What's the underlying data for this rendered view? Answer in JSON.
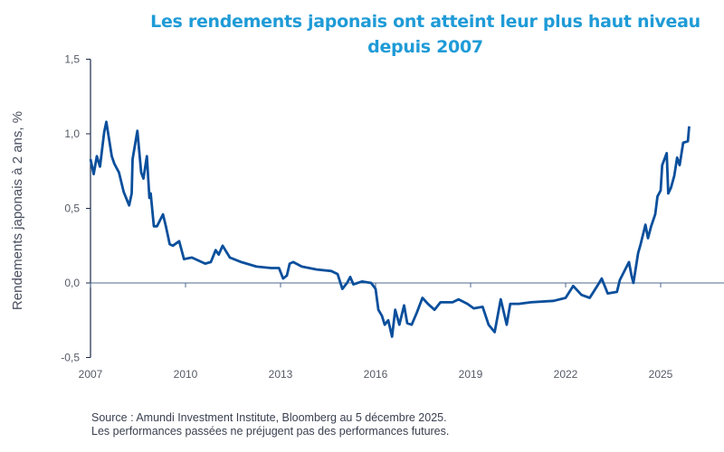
{
  "chart_data": {
    "type": "line",
    "title": "Les rendements japonais ont atteint leur plus haut niveau depuis 2007",
    "title_lines": [
      "Les rendements japonais ont atteint leur plus haut niveau",
      "depuis 2007"
    ],
    "xlabel": "",
    "ylabel": "Rendements japonais à 2 ans, %",
    "xlim": [
      2007,
      2027
    ],
    "ylim": [
      -0.5,
      1.5
    ],
    "x_ticks": [
      2007,
      2010,
      2013,
      2016,
      2019,
      2022,
      2025
    ],
    "x_tick_labels": [
      "2007",
      "2010",
      "2013",
      "2016",
      "2019",
      "2022",
      "2025"
    ],
    "y_ticks": [
      -0.5,
      0,
      0.5,
      1.0,
      1.5
    ],
    "y_tick_labels": [
      "-0,5",
      "0,0",
      "0,5",
      "1,0",
      "1,5"
    ],
    "grid": false,
    "line_color": "#0a4f9c",
    "series": [
      {
        "x": [
          2007.0,
          2007.1,
          2007.2,
          2007.3,
          2007.43,
          2007.5,
          2007.67,
          2007.75,
          2007.9,
          2008.05,
          2008.22,
          2008.3,
          2008.33,
          2008.48,
          2008.6,
          2008.67,
          2008.78,
          2008.86,
          2008.9,
          2009.0,
          2009.1,
          2009.29,
          2009.38,
          2009.5,
          2009.6,
          2009.8,
          2009.95,
          2010.2,
          2010.62,
          2010.8,
          2010.95,
          2011.05,
          2011.17,
          2011.4,
          2011.76,
          2012.24,
          2012.7,
          2012.95,
          2013.08,
          2013.2,
          2013.29,
          2013.4,
          2013.67,
          2014.14,
          2014.6,
          2014.8,
          2014.95,
          2015.1,
          2015.2,
          2015.3,
          2015.57,
          2015.86,
          2016.0,
          2016.09,
          2016.2,
          2016.29,
          2016.4,
          2016.52,
          2016.62,
          2016.75,
          2016.9,
          2017.0,
          2017.14,
          2017.3,
          2017.48,
          2017.65,
          2017.86,
          2018.05,
          2018.43,
          2018.62,
          2018.9,
          2019.1,
          2019.38,
          2019.57,
          2019.76,
          2019.95,
          2020.14,
          2020.25,
          2020.52,
          2020.9,
          2021.62,
          2022.0,
          2022.24,
          2022.5,
          2022.76,
          2023.0,
          2023.14,
          2023.33,
          2023.62,
          2023.71,
          2024.0,
          2024.08,
          2024.14,
          2024.29,
          2024.37,
          2024.52,
          2024.6,
          2024.7,
          2024.83,
          2024.9,
          2025.0,
          2025.05,
          2025.19,
          2025.24,
          2025.33,
          2025.43,
          2025.52,
          2025.6,
          2025.71,
          2025.86,
          2025.9
        ],
        "y": [
          0.83,
          0.73,
          0.85,
          0.78,
          1.01,
          1.08,
          0.85,
          0.8,
          0.74,
          0.61,
          0.52,
          0.6,
          0.83,
          1.02,
          0.74,
          0.7,
          0.85,
          0.57,
          0.6,
          0.38,
          0.38,
          0.46,
          0.38,
          0.26,
          0.25,
          0.28,
          0.16,
          0.17,
          0.13,
          0.14,
          0.22,
          0.19,
          0.25,
          0.17,
          0.14,
          0.11,
          0.1,
          0.1,
          0.03,
          0.05,
          0.13,
          0.14,
          0.11,
          0.09,
          0.08,
          0.06,
          -0.04,
          0.0,
          0.04,
          -0.01,
          0.01,
          0.0,
          -0.04,
          -0.18,
          -0.22,
          -0.28,
          -0.25,
          -0.36,
          -0.18,
          -0.28,
          -0.15,
          -0.27,
          -0.28,
          -0.2,
          -0.1,
          -0.14,
          -0.18,
          -0.13,
          -0.13,
          -0.11,
          -0.14,
          -0.17,
          -0.16,
          -0.28,
          -0.33,
          -0.11,
          -0.28,
          -0.14,
          -0.14,
          -0.13,
          -0.12,
          -0.1,
          -0.02,
          -0.08,
          -0.1,
          -0.02,
          0.03,
          -0.07,
          -0.06,
          0.02,
          0.14,
          0.05,
          0.0,
          0.2,
          0.26,
          0.39,
          0.3,
          0.38,
          0.46,
          0.58,
          0.62,
          0.79,
          0.87,
          0.6,
          0.64,
          0.72,
          0.84,
          0.79,
          0.94,
          0.95,
          1.05
        ]
      }
    ]
  },
  "footer": {
    "source": "Source : Amundi Investment Institute, Bloomberg au 5 décembre 2025.",
    "disclaimer": "Les performances passées ne préjugent pas des performances futures."
  }
}
